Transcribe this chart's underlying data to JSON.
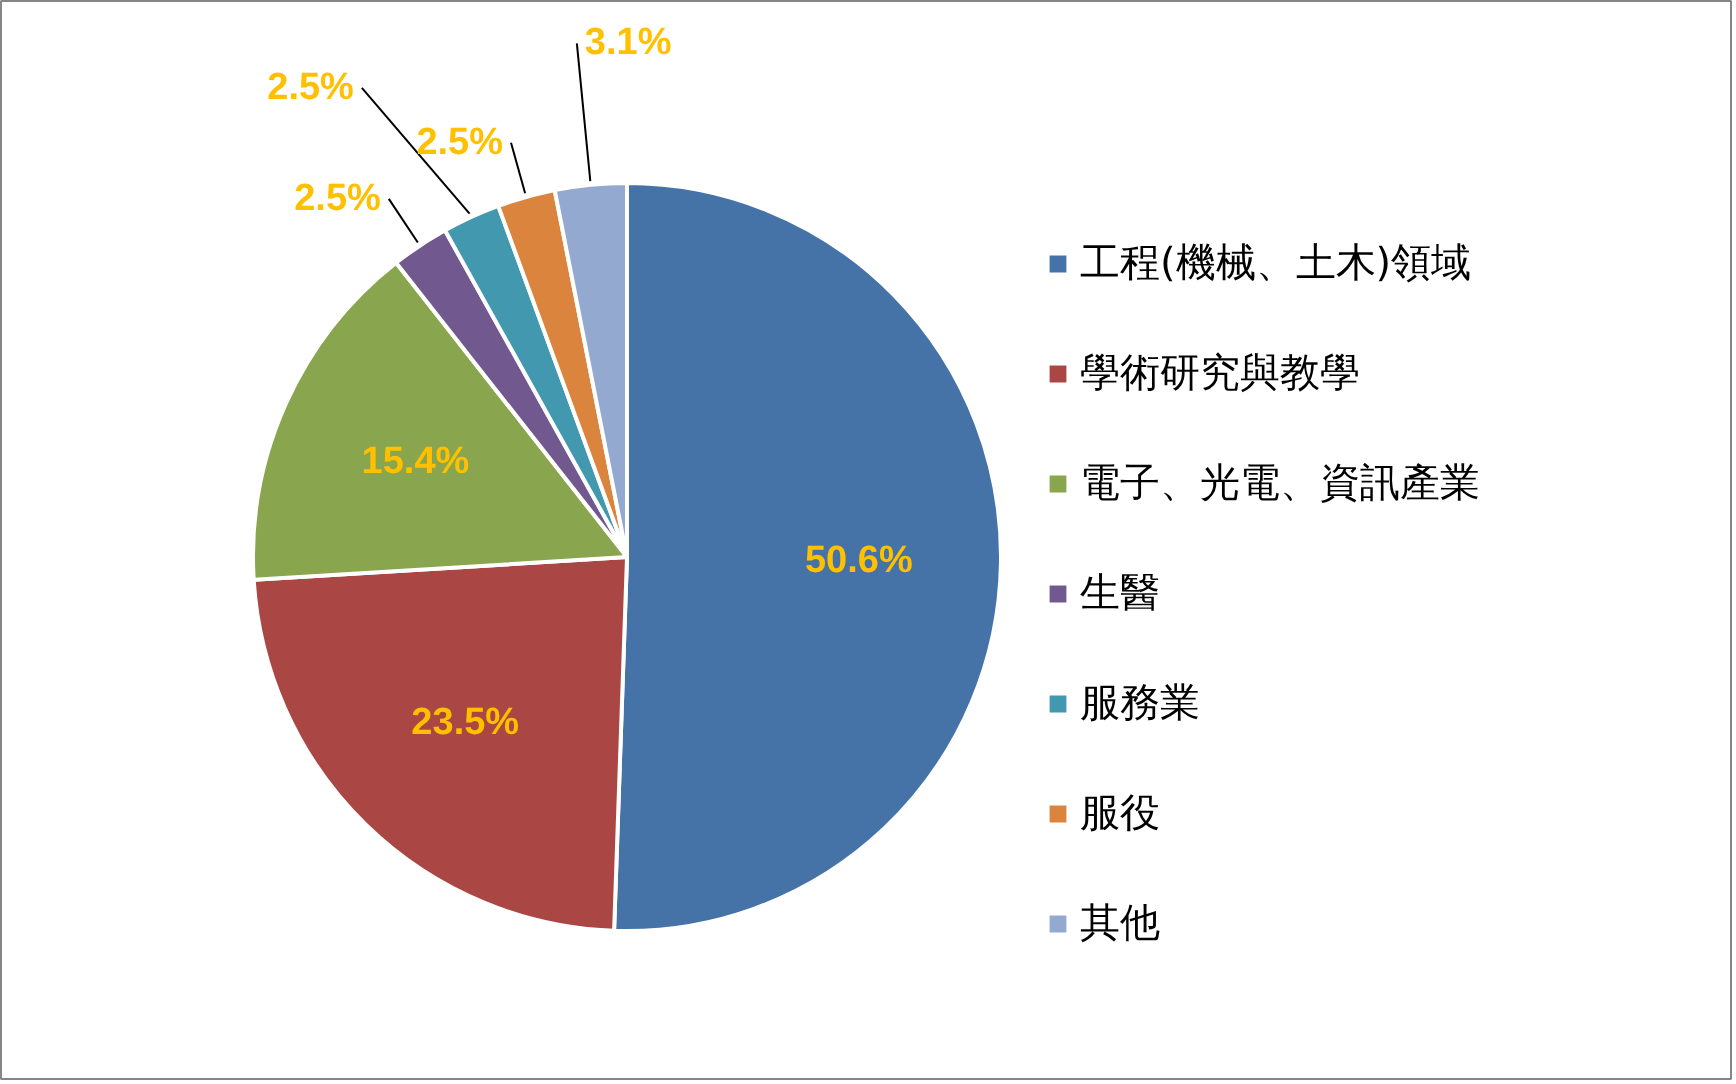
{
  "chart_data": {
    "type": "pie",
    "categories": [
      "工程(機械、土木)領域",
      "學術研究與教學",
      "電子、光電、資訊產業",
      "生醫",
      "服務業",
      "服役",
      "其他"
    ],
    "values": [
      50.6,
      23.5,
      15.4,
      2.5,
      2.5,
      2.5,
      3.1
    ],
    "colors": [
      "#4572a7",
      "#aa4643",
      "#89a54e",
      "#71588f",
      "#4198af",
      "#db843d",
      "#93a9cf"
    ],
    "value_labels": [
      "50.6%",
      "23.5%",
      "15.4%",
      "2.5%",
      "2.5%",
      "2.5%",
      "3.1%"
    ],
    "legend": "right"
  }
}
